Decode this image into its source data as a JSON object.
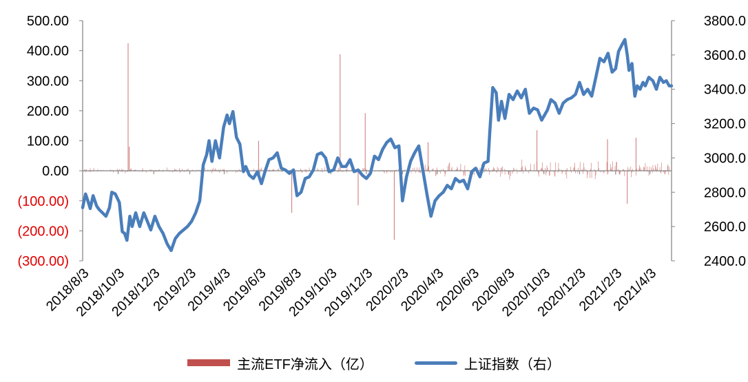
{
  "chart_data": {
    "type": "bar+line",
    "colors": {
      "bars": "#c0504d",
      "line": "#4a7ebb",
      "negative_tick": "#e00000",
      "axis": "#808080"
    },
    "left_axis": {
      "ylim": [
        -300,
        500
      ],
      "ticks": [
        500,
        400,
        300,
        200,
        100,
        0,
        -100,
        -200,
        -300
      ],
      "tick_labels": [
        "500.00",
        "400.00",
        "300.00",
        "200.00",
        "100.00",
        "0.00",
        "(100.00)",
        "(200.00)",
        "(300.00)"
      ]
    },
    "right_axis": {
      "ylim": [
        2400,
        3800
      ],
      "ticks": [
        3800,
        3600,
        3400,
        3200,
        3000,
        2800,
        2600,
        2400
      ],
      "tick_labels": [
        "3800.0",
        "3600.0",
        "3400.0",
        "3200.0",
        "3000.0",
        "2800.0",
        "2600.0",
        "2400.0"
      ]
    },
    "x_axis": {
      "range": [
        "2018-08-03",
        "2021-05-10"
      ],
      "ticks": [
        "2018-08-03",
        "2018-10-03",
        "2018-12-03",
        "2019-02-03",
        "2019-04-03",
        "2019-06-03",
        "2019-08-03",
        "2019-10-03",
        "2019-12-03",
        "2020-02-03",
        "2020-04-03",
        "2020-06-03",
        "2020-08-03",
        "2020-10-03",
        "2020-12-03",
        "2021-02-03",
        "2021-04-03"
      ],
      "tick_labels": [
        "2018/8/3",
        "2018/10/3",
        "2018/12/3",
        "2019/2/3",
        "2019/4/3",
        "2019/6/3",
        "2019/8/3",
        "2019/10/3",
        "2019/12/3",
        "2020/2/3",
        "2020/4/3",
        "2020/6/3",
        "2020/8/3",
        "2020/10/3",
        "2020/12/3",
        "2021/2/3",
        "2021/4/3"
      ]
    },
    "series": [
      {
        "name": "主流ETF净流入（亿）",
        "type": "bar",
        "axis": "left",
        "note_values": "baseline small flows in both directions across the whole period",
        "spikes": [
          {
            "x": "2018-10-20",
            "y": 425
          },
          {
            "x": "2018-10-22",
            "y": 80
          },
          {
            "x": "2019-10-19",
            "y": 388
          },
          {
            "x": "2019-12-01",
            "y": 192
          },
          {
            "x": "2019-11-19",
            "y": -115
          },
          {
            "x": "2020-01-20",
            "y": -230
          },
          {
            "x": "2019-07-28",
            "y": -140
          },
          {
            "x": "2019-06-01",
            "y": 100
          },
          {
            "x": "2020-03-18",
            "y": 95
          },
          {
            "x": "2020-09-21",
            "y": 135
          },
          {
            "x": "2021-01-20",
            "y": 105
          },
          {
            "x": "2021-03-10",
            "y": 110
          },
          {
            "x": "2021-02-23",
            "y": -110
          }
        ]
      },
      {
        "name": "上证指数（右）",
        "type": "line",
        "axis": "right",
        "points": [
          [
            "2018-08-03",
            2710
          ],
          [
            "2018-08-08",
            2790
          ],
          [
            "2018-08-12",
            2750
          ],
          [
            "2018-08-16",
            2705
          ],
          [
            "2018-08-21",
            2780
          ],
          [
            "2018-08-27",
            2720
          ],
          [
            "2018-08-31",
            2700
          ],
          [
            "2018-09-06",
            2680
          ],
          [
            "2018-09-12",
            2660
          ],
          [
            "2018-09-18",
            2710
          ],
          [
            "2018-09-22",
            2800
          ],
          [
            "2018-09-28",
            2790
          ],
          [
            "2018-10-05",
            2740
          ],
          [
            "2018-10-10",
            2570
          ],
          [
            "2018-10-14",
            2560
          ],
          [
            "2018-10-18",
            2520
          ],
          [
            "2018-10-23",
            2660
          ],
          [
            "2018-10-27",
            2600
          ],
          [
            "2018-11-02",
            2680
          ],
          [
            "2018-11-09",
            2600
          ],
          [
            "2018-11-16",
            2680
          ],
          [
            "2018-11-21",
            2640
          ],
          [
            "2018-11-28",
            2580
          ],
          [
            "2018-12-05",
            2660
          ],
          [
            "2018-12-12",
            2600
          ],
          [
            "2018-12-19",
            2560
          ],
          [
            "2018-12-26",
            2500
          ],
          [
            "2019-01-02",
            2460
          ],
          [
            "2019-01-09",
            2530
          ],
          [
            "2019-01-16",
            2560
          ],
          [
            "2019-01-23",
            2580
          ],
          [
            "2019-01-30",
            2600
          ],
          [
            "2019-02-06",
            2630
          ],
          [
            "2019-02-13",
            2680
          ],
          [
            "2019-02-20",
            2750
          ],
          [
            "2019-02-26",
            2960
          ],
          [
            "2019-03-04",
            3020
          ],
          [
            "2019-03-08",
            3100
          ],
          [
            "2019-03-13",
            2980
          ],
          [
            "2019-03-19",
            3100
          ],
          [
            "2019-03-26",
            3000
          ],
          [
            "2019-04-02",
            3180
          ],
          [
            "2019-04-08",
            3250
          ],
          [
            "2019-04-12",
            3200
          ],
          [
            "2019-04-18",
            3270
          ],
          [
            "2019-04-24",
            3120
          ],
          [
            "2019-04-30",
            3080
          ],
          [
            "2019-05-06",
            2920
          ],
          [
            "2019-05-10",
            2950
          ],
          [
            "2019-05-16",
            2900
          ],
          [
            "2019-05-23",
            2880
          ],
          [
            "2019-05-30",
            2920
          ],
          [
            "2019-06-06",
            2850
          ],
          [
            "2019-06-12",
            2920
          ],
          [
            "2019-06-19",
            2990
          ],
          [
            "2019-06-26",
            3000
          ],
          [
            "2019-07-03",
            3030
          ],
          [
            "2019-07-10",
            2940
          ],
          [
            "2019-07-17",
            2930
          ],
          [
            "2019-07-24",
            2910
          ],
          [
            "2019-07-31",
            2930
          ],
          [
            "2019-08-06",
            2780
          ],
          [
            "2019-08-13",
            2800
          ],
          [
            "2019-08-20",
            2880
          ],
          [
            "2019-08-27",
            2890
          ],
          [
            "2019-09-03",
            2930
          ],
          [
            "2019-09-10",
            3020
          ],
          [
            "2019-09-17",
            3030
          ],
          [
            "2019-09-24",
            3000
          ],
          [
            "2019-09-30",
            2920
          ],
          [
            "2019-10-08",
            2930
          ],
          [
            "2019-10-15",
            3000
          ],
          [
            "2019-10-22",
            2950
          ],
          [
            "2019-10-29",
            2950
          ],
          [
            "2019-11-05",
            2990
          ],
          [
            "2019-11-12",
            2920
          ],
          [
            "2019-11-19",
            2930
          ],
          [
            "2019-11-26",
            2900
          ],
          [
            "2019-12-03",
            2880
          ],
          [
            "2019-12-10",
            2910
          ],
          [
            "2019-12-17",
            3010
          ],
          [
            "2019-12-24",
            2990
          ],
          [
            "2019-12-31",
            3050
          ],
          [
            "2020-01-07",
            3090
          ],
          [
            "2020-01-14",
            3110
          ],
          [
            "2020-01-21",
            3060
          ],
          [
            "2020-01-28",
            3070
          ],
          [
            "2020-02-03",
            2750
          ],
          [
            "2020-02-10",
            2890
          ],
          [
            "2020-02-17",
            2980
          ],
          [
            "2020-02-24",
            3030
          ],
          [
            "2020-03-02",
            3070
          ],
          [
            "2020-03-09",
            2930
          ],
          [
            "2020-03-16",
            2790
          ],
          [
            "2020-03-23",
            2660
          ],
          [
            "2020-03-30",
            2750
          ],
          [
            "2020-04-06",
            2780
          ],
          [
            "2020-04-13",
            2800
          ],
          [
            "2020-04-20",
            2840
          ],
          [
            "2020-04-27",
            2820
          ],
          [
            "2020-05-04",
            2880
          ],
          [
            "2020-05-11",
            2860
          ],
          [
            "2020-05-18",
            2870
          ],
          [
            "2020-05-25",
            2820
          ],
          [
            "2020-06-01",
            2920
          ],
          [
            "2020-06-08",
            2940
          ],
          [
            "2020-06-15",
            2890
          ],
          [
            "2020-06-22",
            2970
          ],
          [
            "2020-06-29",
            2980
          ],
          [
            "2020-07-02",
            3150
          ],
          [
            "2020-07-07",
            3410
          ],
          [
            "2020-07-13",
            3380
          ],
          [
            "2020-07-17",
            3220
          ],
          [
            "2020-07-22",
            3330
          ],
          [
            "2020-07-28",
            3230
          ],
          [
            "2020-08-04",
            3370
          ],
          [
            "2020-08-11",
            3340
          ],
          [
            "2020-08-18",
            3390
          ],
          [
            "2020-08-25",
            3350
          ],
          [
            "2020-09-01",
            3400
          ],
          [
            "2020-09-08",
            3260
          ],
          [
            "2020-09-15",
            3290
          ],
          [
            "2020-09-22",
            3280
          ],
          [
            "2020-09-29",
            3220
          ],
          [
            "2020-10-09",
            3280
          ],
          [
            "2020-10-15",
            3340
          ],
          [
            "2020-10-22",
            3320
          ],
          [
            "2020-10-29",
            3260
          ],
          [
            "2020-11-05",
            3320
          ],
          [
            "2020-11-12",
            3340
          ],
          [
            "2020-11-19",
            3350
          ],
          [
            "2020-11-26",
            3370
          ],
          [
            "2020-12-03",
            3440
          ],
          [
            "2020-12-10",
            3370
          ],
          [
            "2020-12-17",
            3400
          ],
          [
            "2020-12-24",
            3360
          ],
          [
            "2020-12-31",
            3470
          ],
          [
            "2021-01-07",
            3580
          ],
          [
            "2021-01-14",
            3560
          ],
          [
            "2021-01-21",
            3610
          ],
          [
            "2021-01-28",
            3500
          ],
          [
            "2021-02-03",
            3520
          ],
          [
            "2021-02-08",
            3620
          ],
          [
            "2021-02-14",
            3660
          ],
          [
            "2021-02-19",
            3690
          ],
          [
            "2021-02-23",
            3600
          ],
          [
            "2021-02-26",
            3510
          ],
          [
            "2021-03-03",
            3550
          ],
          [
            "2021-03-08",
            3360
          ],
          [
            "2021-03-12",
            3420
          ],
          [
            "2021-03-17",
            3400
          ],
          [
            "2021-03-22",
            3440
          ],
          [
            "2021-03-26",
            3420
          ],
          [
            "2021-04-01",
            3470
          ],
          [
            "2021-04-08",
            3450
          ],
          [
            "2021-04-14",
            3400
          ],
          [
            "2021-04-20",
            3470
          ],
          [
            "2021-04-26",
            3440
          ],
          [
            "2021-05-01",
            3450
          ],
          [
            "2021-05-06",
            3420
          ],
          [
            "2021-05-10",
            3420
          ]
        ]
      }
    ]
  },
  "legend": {
    "bar_label": "主流ETF净流入（亿）",
    "line_label": "上证指数（右）"
  }
}
